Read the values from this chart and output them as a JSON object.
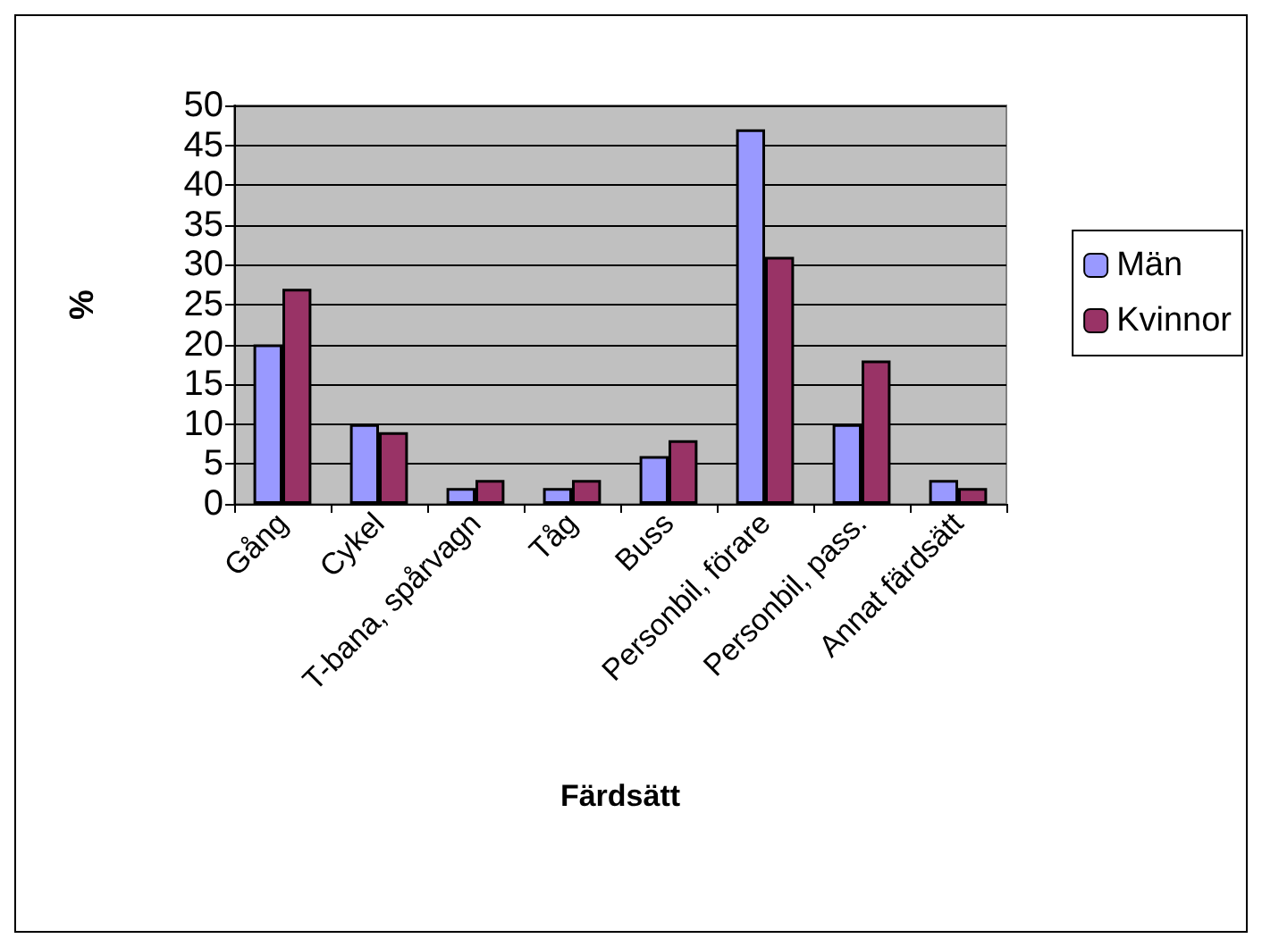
{
  "chart_data": {
    "type": "bar",
    "xlabel": "Färdsätt",
    "ylabel": "%",
    "categories": [
      "Gång",
      "Cykel",
      "T-bana, spårvagn",
      "Tåg",
      "Buss",
      "Personbil, förare",
      "Personbil, pass.",
      "Annat färdsätt"
    ],
    "series": [
      {
        "name": "Män",
        "color": "#9999ff",
        "values": [
          20,
          10,
          2,
          2,
          6,
          47,
          10,
          3
        ]
      },
      {
        "name": "Kvinnor",
        "color": "#993366",
        "values": [
          27,
          9,
          3,
          3,
          8,
          31,
          18,
          2
        ]
      }
    ],
    "ylim": [
      0,
      50
    ],
    "yticks": [
      0,
      5,
      10,
      15,
      20,
      25,
      30,
      35,
      40,
      45,
      50
    ],
    "grid": "y",
    "legend": "right"
  }
}
